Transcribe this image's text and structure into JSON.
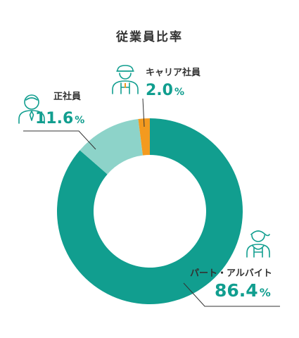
{
  "chart_data": {
    "type": "pie",
    "title": "従業員比率",
    "slices": [
      {
        "label": "パート・アルバイト",
        "value": 86.4,
        "value_text": "86.4",
        "unit": "%",
        "color": "#119e8f",
        "icon": "apron-worker-icon"
      },
      {
        "label": "正社員",
        "value": 11.6,
        "value_text": "11.6",
        "unit": "%",
        "color": "#8dd3c9",
        "icon": "employee-icon"
      },
      {
        "label": "キャリア社員",
        "value": 2.0,
        "value_text": "2.0",
        "unit": "%",
        "color": "#f39a1f",
        "icon": "cap-worker-icon"
      }
    ],
    "accent_text_color": "#119e8f",
    "leader_line_color": "#333333"
  }
}
